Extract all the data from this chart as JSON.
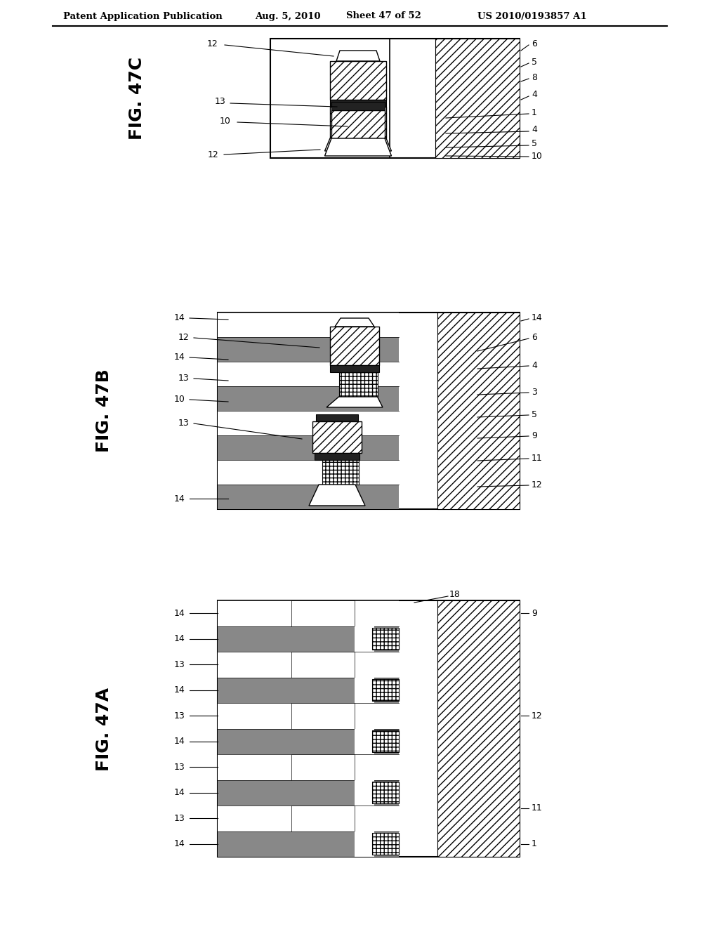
{
  "header_left": "Patent Application Publication",
  "header_mid1": "Aug. 5, 2010",
  "header_mid2": "Sheet 47 of 52",
  "header_right": "US 2010/0193857 A1",
  "background": "#ffffff",
  "fig47c_label": "FIG. 47C",
  "fig47b_label": "FIG. 47B",
  "fig47a_label": "FIG. 47A",
  "label_fontsize": 18,
  "annot_fontsize": 9
}
